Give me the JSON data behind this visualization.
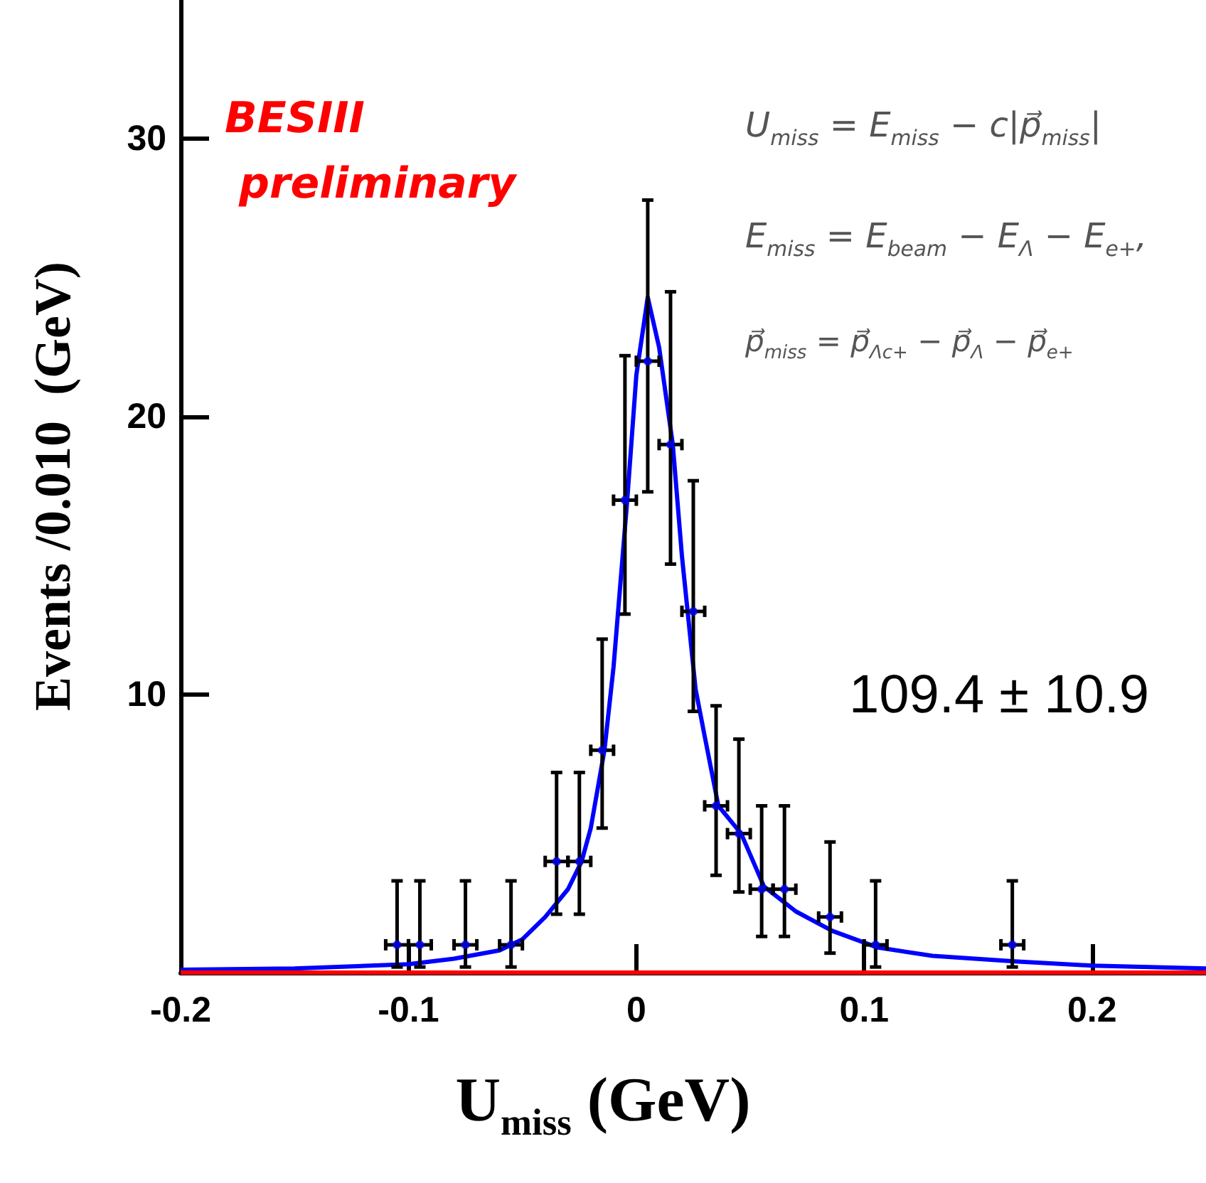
{
  "chart_data": {
    "type": "scatter",
    "xlabel": "U$_{miss}$ (GeV)",
    "ylabel": "Events /0.010  (GeV)",
    "xlim": [
      -0.2,
      0.25
    ],
    "xticks": [
      -0.2,
      -0.1,
      0,
      0.1,
      0.2
    ],
    "ylim": [
      0,
      35
    ],
    "yticks": [
      10,
      20,
      30
    ],
    "marker": "circle",
    "annotations": [
      "BESIII",
      "preliminary",
      "U$_{miss}$ = E$_{miss}$ − c|p⃗$_{miss}$|",
      "E$_{miss}$ = E$_{beam}$ − E$_{Λ}$ − E$_{e+}$,",
      "p⃗$_{miss}$ = p⃗$_{Λc+}$ − p⃗$_{Λ}$ − p⃗$_{e+}$",
      "109.4 ± 10.9"
    ],
    "series": [
      {
        "type": "scatter",
        "color": "#0000ff",
        "x": [
          -0.105,
          -0.095,
          -0.075,
          -0.055,
          -0.035,
          -0.025,
          -0.015,
          -0.005,
          0.005,
          0.015,
          0.025,
          0.035,
          0.045,
          0.055,
          0.065,
          0.085,
          0.105,
          0.165
        ],
        "values": [
          1,
          1,
          1,
          1,
          4,
          4,
          8,
          17,
          22,
          19,
          13,
          6,
          5,
          3,
          3,
          2,
          1,
          1
        ],
        "errors": [
          [
            0.2,
            3.3
          ],
          [
            0.2,
            3.3
          ],
          [
            0.2,
            3.3
          ],
          [
            0.2,
            3.3
          ],
          [
            2.1,
            7.2
          ],
          [
            2.1,
            7.2
          ],
          [
            5.2,
            12.0
          ],
          [
            12.9,
            22.2
          ],
          [
            17.3,
            27.8
          ],
          [
            14.7,
            24.5
          ],
          [
            9.4,
            17.7
          ],
          [
            3.5,
            9.6
          ],
          [
            2.9,
            8.4
          ],
          [
            1.3,
            6.0
          ],
          [
            1.3,
            6.0
          ],
          [
            0.7,
            4.7
          ],
          [
            0.2,
            3.3
          ],
          [
            0.2,
            3.3
          ]
        ],
        "xerrors": [
          0.005,
          0.005,
          0.005,
          0.005,
          0.005,
          0.005,
          0.005,
          0.005,
          0.005,
          0.005,
          0.005,
          0.005,
          0.005,
          0.005,
          0.005,
          0.005,
          0.005,
          0.005
        ]
      },
      {
        "type": "line",
        "color": "#0000ff",
        "marker": "none",
        "line_style": "solid",
        "x": [
          -0.2,
          -0.15,
          -0.1,
          -0.08,
          -0.06,
          -0.05,
          -0.04,
          -0.03,
          -0.024,
          -0.02,
          -0.014,
          -0.01,
          -0.004,
          0,
          0.005,
          0.01,
          0.016,
          0.02,
          0.026,
          0.03,
          0.036,
          0.046,
          0.056,
          0.07,
          0.086,
          0.106,
          0.13,
          0.166,
          0.2,
          0.25
        ],
        "values": [
          0.1,
          0.15,
          0.3,
          0.5,
          0.8,
          1.2,
          2.0,
          3.0,
          4.0,
          5.2,
          8,
          11,
          17,
          21.5,
          24.3,
          22.5,
          19,
          15,
          10.2,
          8.5,
          6,
          5.0,
          3.1,
          2.2,
          1.5,
          0.9,
          0.6,
          0.4,
          0.25,
          0.15
        ]
      },
      {
        "type": "line",
        "color": "#ff0000",
        "marker": "none",
        "line_style": "solid",
        "x": [
          -0.2,
          0.25
        ],
        "values": [
          0,
          0
        ]
      }
    ]
  }
}
